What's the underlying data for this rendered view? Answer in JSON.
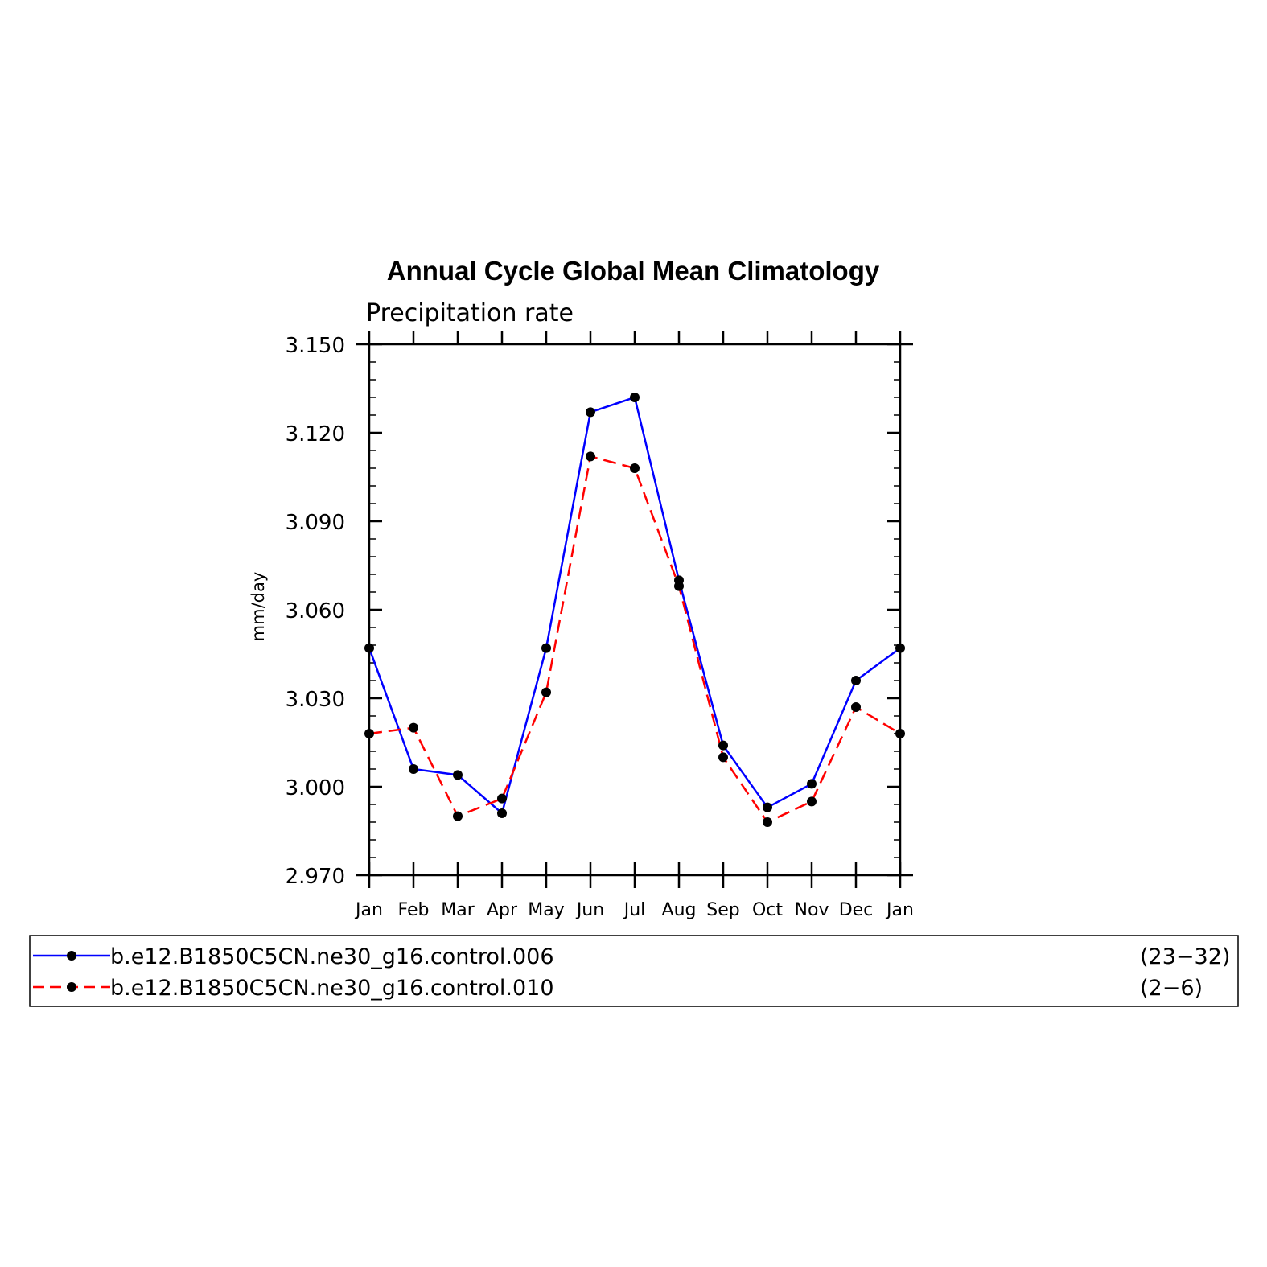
{
  "chart_data": {
    "type": "line",
    "title": "Annual Cycle Global Mean Climatology",
    "subtitle": "Precipitation rate",
    "xlabel": "",
    "ylabel": "mm/day",
    "ylim": [
      2.97,
      3.15
    ],
    "yticks": [
      "3.150",
      "3.120",
      "3.090",
      "3.060",
      "3.030",
      "3.000",
      "2.970"
    ],
    "ytick_values": [
      3.15,
      3.12,
      3.09,
      3.06,
      3.03,
      3.0,
      2.97
    ],
    "categories": [
      "Jan",
      "Feb",
      "Mar",
      "Apr",
      "May",
      "Jun",
      "Jul",
      "Aug",
      "Sep",
      "Oct",
      "Nov",
      "Dec",
      "Jan"
    ],
    "grid": false,
    "legend_position": "bottom",
    "series": [
      {
        "name": "b.e12.B1850C5CN.ne30_g16.control.006",
        "years": "(23−32)",
        "color": "#0000ff",
        "dash": "solid",
        "values": [
          3.047,
          3.006,
          3.004,
          2.991,
          3.047,
          3.127,
          3.132,
          3.07,
          3.014,
          2.993,
          3.001,
          3.036,
          3.047
        ]
      },
      {
        "name": "b.e12.B1850C5CN.ne30_g16.control.010",
        "years": "(2−6)",
        "color": "#ff0000",
        "dash": "dashed",
        "values": [
          3.018,
          3.02,
          2.99,
          2.996,
          3.032,
          3.112,
          3.108,
          3.068,
          3.01,
          2.988,
          2.995,
          3.027,
          3.018
        ]
      }
    ]
  }
}
